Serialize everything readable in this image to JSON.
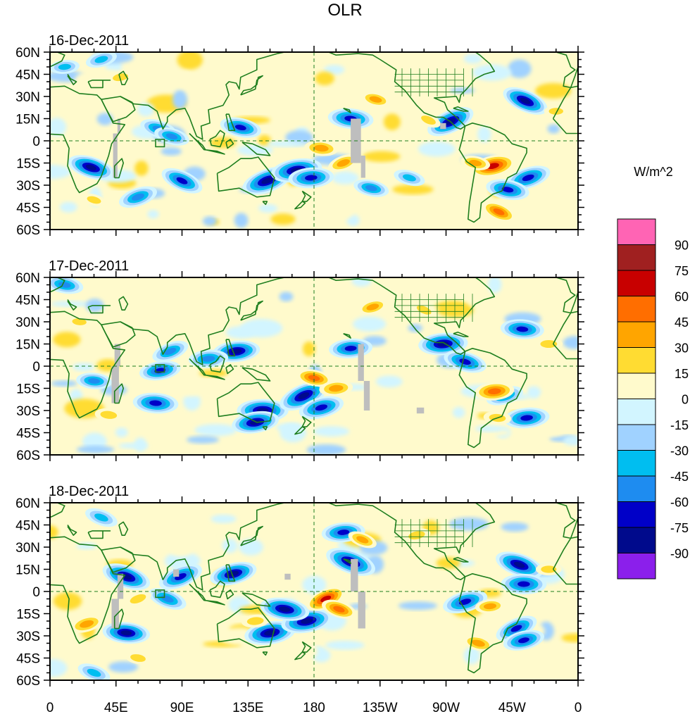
{
  "chart_data": {
    "type": "heatmap",
    "title": "OLR",
    "colorbar_label": "W/m^2",
    "projection": "cylindrical-equidistant",
    "lon_range": [
      0,
      360
    ],
    "lat_range": [
      -60,
      60
    ],
    "x_tick_labels": [
      "0",
      "45E",
      "90E",
      "135E",
      "180",
      "135W",
      "90W",
      "45W",
      "0"
    ],
    "x_tick_values": [
      0,
      45,
      90,
      135,
      180,
      225,
      270,
      315,
      360
    ],
    "y_tick_labels": [
      "60N",
      "45N",
      "30N",
      "15N",
      "0",
      "15S",
      "30S",
      "45S",
      "60S"
    ],
    "y_tick_values": [
      60,
      45,
      30,
      15,
      0,
      -15,
      -30,
      -45,
      -60
    ],
    "levels": [
      -90,
      -75,
      -60,
      -45,
      -30,
      -15,
      0,
      15,
      30,
      45,
      60,
      75,
      90
    ],
    "level_labels": [
      "90",
      "75",
      "60",
      "45",
      "30",
      "15",
      "0",
      "-15",
      "-30",
      "-45",
      "-60",
      "-75",
      "-90"
    ],
    "colors": [
      "#8B1FEB",
      "#000A8C",
      "#0000C8",
      "#1E8CF0",
      "#00BEF0",
      "#A0D2FF",
      "#D2F5FF",
      "#FFFACC",
      "#FFDC32",
      "#FFA500",
      "#FF6E00",
      "#C80000",
      "#A02020",
      "#FF64B4"
    ],
    "missing_color": "#BEBEBE",
    "coastline_color": "#1E7E1E",
    "panels": [
      {
        "date": "16-Dec-2011",
        "anomalies": [
          {
            "lon": 148,
            "lat": -27,
            "value": -95
          },
          {
            "lon": 168,
            "lat": -20,
            "value": -95
          },
          {
            "lon": 178,
            "lat": -25,
            "value": -80
          },
          {
            "lon": 130,
            "lat": 9,
            "value": -70
          },
          {
            "lon": 28,
            "lat": -18,
            "value": -85
          },
          {
            "lon": 90,
            "lat": -27,
            "value": -75
          },
          {
            "lon": 60,
            "lat": -38,
            "value": -65
          },
          {
            "lon": 74,
            "lat": 8,
            "value": -60
          },
          {
            "lon": 83,
            "lat": 3,
            "value": -55
          },
          {
            "lon": 205,
            "lat": 15,
            "value": -80
          },
          {
            "lon": 273,
            "lat": 13,
            "value": -90
          },
          {
            "lon": 324,
            "lat": 27,
            "value": -85
          },
          {
            "lon": 326,
            "lat": -25,
            "value": -80
          },
          {
            "lon": 312,
            "lat": -33,
            "value": -75
          },
          {
            "lon": 245,
            "lat": -25,
            "value": -45
          },
          {
            "lon": 219,
            "lat": -32,
            "value": -55
          },
          {
            "lon": 302,
            "lat": -17,
            "value": 80
          },
          {
            "lon": 290,
            "lat": -15,
            "value": 40
          },
          {
            "lon": 185,
            "lat": -5,
            "value": 50
          },
          {
            "lon": 200,
            "lat": -15,
            "value": 45
          },
          {
            "lon": 222,
            "lat": 28,
            "value": 40
          },
          {
            "lon": 258,
            "lat": 14,
            "value": 30
          },
          {
            "lon": 306,
            "lat": -48,
            "value": 55
          },
          {
            "lon": 48,
            "lat": 43,
            "value": 30
          },
          {
            "lon": 30,
            "lat": -40,
            "value": 25
          },
          {
            "lon": 345,
            "lat": 20,
            "value": 25
          },
          {
            "lon": 10,
            "lat": 50,
            "value": -40
          },
          {
            "lon": 35,
            "lat": 55,
            "value": -45
          }
        ],
        "missing_regions": [
          {
            "lon": [
              43,
              46
            ],
            "lat": [
              -25,
              5
            ]
          },
          {
            "lon": [
              46,
              48
            ],
            "lat": [
              5,
              15
            ]
          },
          {
            "lon": [
              205,
              212
            ],
            "lat": [
              -15,
              15
            ]
          },
          {
            "lon": [
              212,
              215
            ],
            "lat": [
              -25,
              -10
            ]
          },
          {
            "lon": [
              266,
              270
            ],
            "lat": [
              8,
              12
            ]
          }
        ]
      },
      {
        "date": "17-Dec-2011",
        "anomalies": [
          {
            "lon": 145,
            "lat": -30,
            "value": -95
          },
          {
            "lon": 140,
            "lat": -38,
            "value": -85
          },
          {
            "lon": 173,
            "lat": -20,
            "value": -95
          },
          {
            "lon": 185,
            "lat": -28,
            "value": -80
          },
          {
            "lon": 127,
            "lat": 10,
            "value": -85
          },
          {
            "lon": 108,
            "lat": 5,
            "value": -65
          },
          {
            "lon": 72,
            "lat": -25,
            "value": -80
          },
          {
            "lon": 82,
            "lat": 10,
            "value": -60
          },
          {
            "lon": 75,
            "lat": -3,
            "value": -70
          },
          {
            "lon": 30,
            "lat": -10,
            "value": -55
          },
          {
            "lon": 205,
            "lat": 12,
            "value": -75
          },
          {
            "lon": 268,
            "lat": 15,
            "value": -90
          },
          {
            "lon": 283,
            "lat": 3,
            "value": -75
          },
          {
            "lon": 322,
            "lat": 25,
            "value": -75
          },
          {
            "lon": 325,
            "lat": -35,
            "value": -80
          },
          {
            "lon": 310,
            "lat": -20,
            "value": -60
          },
          {
            "lon": 180,
            "lat": -8,
            "value": 55
          },
          {
            "lon": 195,
            "lat": -15,
            "value": 50
          },
          {
            "lon": 220,
            "lat": 40,
            "value": 40
          },
          {
            "lon": 255,
            "lat": 38,
            "value": 30
          },
          {
            "lon": 303,
            "lat": -17,
            "value": 65
          },
          {
            "lon": 305,
            "lat": -35,
            "value": 35
          },
          {
            "lon": 40,
            "lat": -33,
            "value": 35
          },
          {
            "lon": 20,
            "lat": 30,
            "value": 25
          },
          {
            "lon": 340,
            "lat": 15,
            "value": 35
          },
          {
            "lon": 10,
            "lat": 55,
            "value": -60
          }
        ],
        "missing_regions": [
          {
            "lon": [
              42,
              47
            ],
            "lat": [
              -25,
              0
            ]
          },
          {
            "lon": [
              44,
              48
            ],
            "lat": [
              0,
              15
            ]
          },
          {
            "lon": [
              210,
              214
            ],
            "lat": [
              -10,
              15
            ]
          },
          {
            "lon": [
              214,
              218
            ],
            "lat": [
              -30,
              -10
            ]
          },
          {
            "lon": [
              250,
              255
            ],
            "lat": [
              -32,
              -28
            ]
          }
        ]
      },
      {
        "date": "18-Dec-2011",
        "anomalies": [
          {
            "lon": 150,
            "lat": -28,
            "value": -95
          },
          {
            "lon": 175,
            "lat": -20,
            "value": -95
          },
          {
            "lon": 160,
            "lat": -12,
            "value": -90
          },
          {
            "lon": 125,
            "lat": 12,
            "value": -85
          },
          {
            "lon": 89,
            "lat": 10,
            "value": -80
          },
          {
            "lon": 52,
            "lat": 10,
            "value": -90
          },
          {
            "lon": 52,
            "lat": -28,
            "value": -85
          },
          {
            "lon": 80,
            "lat": -5,
            "value": -65
          },
          {
            "lon": 205,
            "lat": 20,
            "value": -95
          },
          {
            "lon": 200,
            "lat": 40,
            "value": -75
          },
          {
            "lon": 283,
            "lat": -7,
            "value": -80
          },
          {
            "lon": 320,
            "lat": 18,
            "value": -90
          },
          {
            "lon": 323,
            "lat": 5,
            "value": -80
          },
          {
            "lon": 318,
            "lat": -25,
            "value": -75
          },
          {
            "lon": 323,
            "lat": -33,
            "value": -70
          },
          {
            "lon": 188,
            "lat": -5,
            "value": 70
          },
          {
            "lon": 197,
            "lat": -12,
            "value": 55
          },
          {
            "lon": 213,
            "lat": 35,
            "value": 40
          },
          {
            "lon": 250,
            "lat": 38,
            "value": 35
          },
          {
            "lon": 292,
            "lat": -35,
            "value": 45
          },
          {
            "lon": 300,
            "lat": -10,
            "value": 40
          },
          {
            "lon": 25,
            "lat": -22,
            "value": 50
          },
          {
            "lon": 60,
            "lat": -5,
            "value": 35
          },
          {
            "lon": 140,
            "lat": -20,
            "value": 35
          },
          {
            "lon": 340,
            "lat": 15,
            "value": 30
          },
          {
            "lon": 60,
            "lat": -45,
            "value": 30
          },
          {
            "lon": 30,
            "lat": -55,
            "value": -50
          },
          {
            "lon": 35,
            "lat": 50,
            "value": -50
          }
        ],
        "missing_regions": [
          {
            "lon": [
              42,
              47
            ],
            "lat": [
              -25,
              -5
            ]
          },
          {
            "lon": [
              46,
              50
            ],
            "lat": [
              -5,
              12
            ]
          },
          {
            "lon": [
              84,
              88
            ],
            "lat": [
              10,
              15
            ]
          },
          {
            "lon": [
              160,
              164
            ],
            "lat": [
              8,
              12
            ]
          },
          {
            "lon": [
              205,
              210
            ],
            "lat": [
              0,
              22
            ]
          },
          {
            "lon": [
              210,
              215
            ],
            "lat": [
              -25,
              0
            ]
          }
        ]
      }
    ],
    "grid": false,
    "reference_lines": [
      {
        "axis": "lat",
        "value": 0,
        "style": "dashed"
      },
      {
        "axis": "lon",
        "value": 180,
        "style": "dashed"
      }
    ],
    "legend_position": "right",
    "xlabel": "",
    "ylabel": ""
  }
}
